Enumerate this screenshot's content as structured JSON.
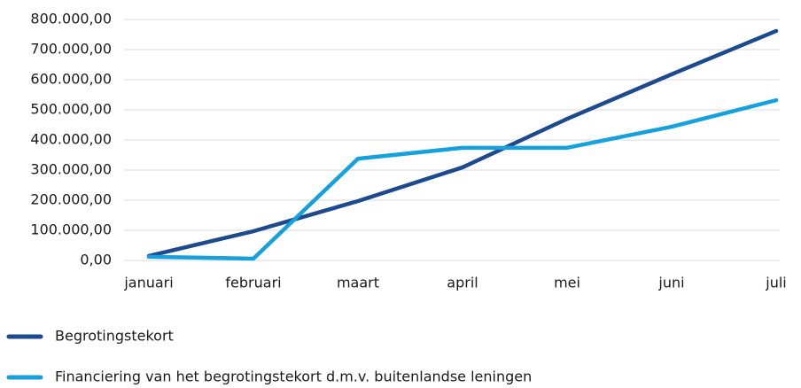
{
  "chart_data": {
    "type": "line",
    "categories": [
      "januari",
      "februari",
      "maart",
      "april",
      "mei",
      "juni",
      "juli"
    ],
    "series": [
      {
        "name": "Begrotingstekort",
        "color": "#1d4a8c",
        "values": [
          15000,
          97000,
          197000,
          309000,
          470000,
          618000,
          762000
        ]
      },
      {
        "name": "Financiering van het begrotingstekort d.m.v. buitenlandse leningen",
        "color": "#16a0dc",
        "values": [
          12000,
          6000,
          338000,
          374000,
          374000,
          444000,
          532000
        ]
      }
    ],
    "ylim": [
      0,
      800000
    ],
    "yticks": [
      {
        "value": 0,
        "label": "0,00"
      },
      {
        "value": 100000,
        "label": "100.000,00"
      },
      {
        "value": 200000,
        "label": "200.000,00"
      },
      {
        "value": 300000,
        "label": "300.000,00"
      },
      {
        "value": 400000,
        "label": "400.000,00"
      },
      {
        "value": 500000,
        "label": "500.000,00"
      },
      {
        "value": 600000,
        "label": "600.000,00"
      },
      {
        "value": 700000,
        "label": "700.000,00"
      },
      {
        "value": 800000,
        "label": "800.000,00"
      }
    ],
    "grid": true,
    "legend": "bottom"
  }
}
